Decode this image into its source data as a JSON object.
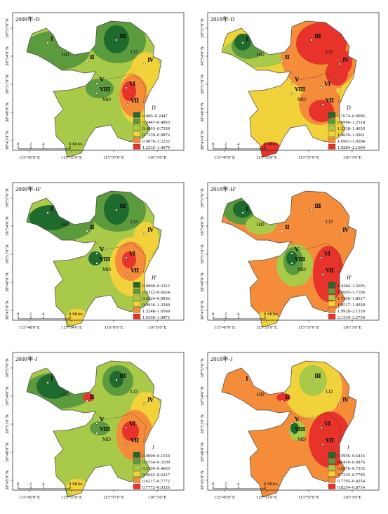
{
  "colors": {
    "c1": "#1f6b2e",
    "c2": "#5c9a3e",
    "c3": "#a9c948",
    "c4": "#f2d23a",
    "c5": "#f58c3a",
    "c6": "#e8332b",
    "frame": "#333333",
    "outline": "#444444"
  },
  "panels": [
    {
      "id": "d2009",
      "title": "2009年-D",
      "legend_title": "D",
      "legend": [
        "0.000–0.2447",
        "0.2447–0.4893",
        "0.4893–0.7339",
        "0.7339–0.9876",
        "0.9876–1.2232",
        "1.2232–1.4679"
      ],
      "x_ticks": [
        "115°45′0″E",
        "115°51′0″E",
        "115°57′0″E",
        "116°3′0″E"
      ],
      "y_ticks": [
        "38°57′0″N",
        "38°54′0″N",
        "38°51′0″N",
        "38°48′0″N",
        "38°45′0″N"
      ]
    },
    {
      "id": "d2018",
      "title": "2018年-D",
      "legend_title": "D",
      "legend": [
        "0.7674–0.9996",
        "0.9996–1.2318",
        "1.2318–1.4639",
        "1.4639–1.6961",
        "1.6961–1.9284",
        "1.9284–2.1604"
      ],
      "x_ticks": [
        "115°45′0″E",
        "115°51′0″E",
        "115°57′0″E",
        "116°3′0″E"
      ],
      "y_ticks": [
        "38°57′0″N",
        "38°54′0″N",
        "38°51′0″N",
        "38°48′0″N",
        "38°45′0″N"
      ]
    },
    {
      "id": "h2009",
      "title": "2009年-H′",
      "legend_title": "H′",
      "legend": [
        "0.0000–0.3312",
        "0.3312–0.6624",
        "0.6624–0.9936",
        "0.9936–1.3248",
        "1.3248–1.6560",
        "1.6560–1.9872"
      ],
      "x_ticks": [
        "115°48′0″E",
        "115°54′0″E",
        "116°0′0″E",
        "116°6′0″E"
      ],
      "y_ticks": [
        "38°57′0″N",
        "38°54′0″N",
        "38°51′0″N",
        "38°48′0″N",
        "38°45′0″N"
      ]
    },
    {
      "id": "h2018",
      "title": "2018年-H′",
      "legend_title": "H′",
      "legend": [
        "1.4284–1.5695",
        "1.5695–1.7106",
        "1.7106–1.8517",
        "1.8517–1.9928",
        "1.9928–2.1339",
        "2.1339–2.2750"
      ],
      "x_ticks": [
        "115°45′0″E",
        "115°51′0″E",
        "115°57′0″E",
        "116°3′0″E"
      ],
      "y_ticks": [
        "38°57′0″N",
        "38°54′0″N",
        "38°51′0″N",
        "38°48′0″N",
        "38°45′0″N"
      ]
    },
    {
      "id": "j2009",
      "title": "2009年-J",
      "legend_title": "J",
      "legend": [
        "0.0000–0.1554",
        "0.1554–0.3109",
        "0.3109–0.4663",
        "0.4663–0.6217",
        "0.6217–0.7772",
        "0.7772–0.9326"
      ],
      "x_ticks": [
        "115°45′0″E",
        "115°51′0″E",
        "115°57′0″E",
        "116°3′0″E"
      ],
      "y_ticks": [
        "38°57′0″N",
        "38°54′0″N",
        "38°51′0″N",
        "38°48′0″N",
        "38°45′0″N"
      ]
    },
    {
      "id": "j2018",
      "title": "2018年-J",
      "legend_title": "J",
      "legend": [
        "0.5956–0.6416",
        "0.6416–0.6876",
        "0.6876–0.7335",
        "0.7335–0.7795",
        "0.7795–0.8254",
        "0.8254–0.8714"
      ],
      "x_ticks": [
        "115°45′0″E",
        "115°51′0″E",
        "115°57′0″E",
        "116°3′0″E"
      ],
      "y_ticks": [
        "38°57′0″N",
        "38°54′0″N",
        "38°51′0″N",
        "38°48′0″N",
        "38°45′0″N"
      ]
    }
  ],
  "map_labels": {
    "roman": [
      "Ⅰ",
      "Ⅱ",
      "Ⅲ",
      "Ⅳ",
      "Ⅴ",
      "Ⅵ",
      "Ⅶ",
      "Ⅷ"
    ],
    "districts": [
      "HD",
      "LD",
      "MD"
    ]
  },
  "scale": {
    "ticks": [
      "0",
      "2",
      "4",
      "8"
    ],
    "unit": "Miles"
  }
}
